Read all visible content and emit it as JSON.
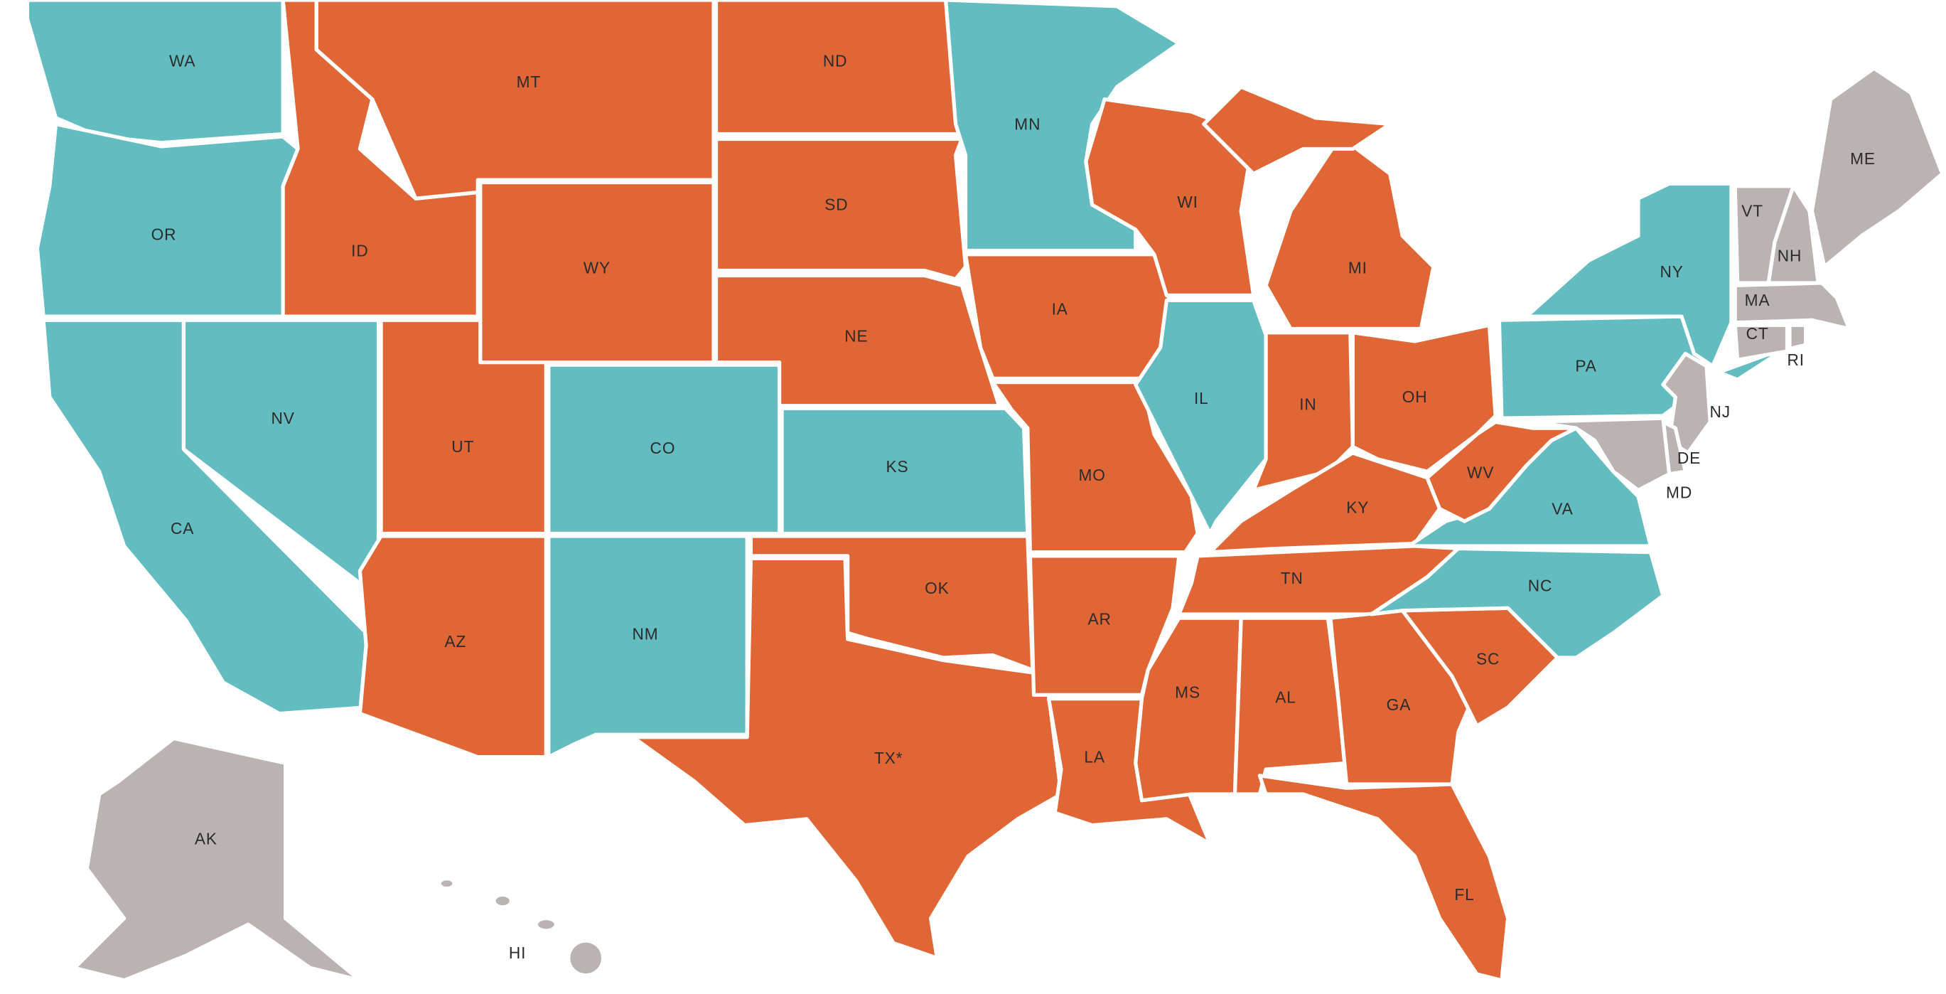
{
  "states": [
    {
      "label": "WA",
      "color": "#63bcc0"
    },
    {
      "label": "OR",
      "color": "#63bcc0"
    },
    {
      "label": "CA",
      "color": "#63bcc0"
    },
    {
      "label": "NV",
      "color": "#63bcc0"
    },
    {
      "label": "ID",
      "color": "#e06636"
    },
    {
      "label": "MT",
      "color": "#e06636"
    },
    {
      "label": "WY",
      "color": "#e06636"
    },
    {
      "label": "UT",
      "color": "#e06636"
    },
    {
      "label": "CO",
      "color": "#63bcc0"
    },
    {
      "label": "AZ",
      "color": "#e06636"
    },
    {
      "label": "NM",
      "color": "#63bcc0"
    },
    {
      "label": "ND",
      "color": "#e06636"
    },
    {
      "label": "SD",
      "color": "#e06636"
    },
    {
      "label": "NE",
      "color": "#e06636"
    },
    {
      "label": "KS",
      "color": "#63bcc0"
    },
    {
      "label": "OK",
      "color": "#e06636"
    },
    {
      "label": "TX*",
      "color": "#e06636"
    },
    {
      "label": "MN",
      "color": "#63bcc0"
    },
    {
      "label": "IA",
      "color": "#e06636"
    },
    {
      "label": "MO",
      "color": "#e06636"
    },
    {
      "label": "AR",
      "color": "#e06636"
    },
    {
      "label": "LA",
      "color": "#e06636"
    },
    {
      "label": "WI",
      "color": "#e06636"
    },
    {
      "label": "IL",
      "color": "#63bcc0"
    },
    {
      "label": "MI",
      "color": "#e06636"
    },
    {
      "label": "IN",
      "color": "#e06636"
    },
    {
      "label": "OH",
      "color": "#e06636"
    },
    {
      "label": "KY",
      "color": "#e06636"
    },
    {
      "label": "TN",
      "color": "#e06636"
    },
    {
      "label": "MS",
      "color": "#e06636"
    },
    {
      "label": "AL",
      "color": "#e06636"
    },
    {
      "label": "GA",
      "color": "#e06636"
    },
    {
      "label": "FL",
      "color": "#e06636"
    },
    {
      "label": "SC",
      "color": "#e06636"
    },
    {
      "label": "NC",
      "color": "#63bcc0"
    },
    {
      "label": "VA",
      "color": "#63bcc0"
    },
    {
      "label": "WV",
      "color": "#e06636"
    },
    {
      "label": "PA",
      "color": "#63bcc0"
    },
    {
      "label": "NY",
      "color": "#63bcc0"
    },
    {
      "label": "VT",
      "color": "#bab3b1"
    },
    {
      "label": "NH",
      "color": "#bab3b1"
    },
    {
      "label": "ME",
      "color": "#bab3b1"
    },
    {
      "label": "MA",
      "color": "#bab3b1"
    },
    {
      "label": "CT",
      "color": "#bab3b1"
    },
    {
      "label": "RI",
      "color": "#bab3b1"
    },
    {
      "label": "NJ",
      "color": "#bab3b1"
    },
    {
      "label": "DE",
      "color": "#bab3b1"
    },
    {
      "label": "MD",
      "color": "#bab3b1"
    },
    {
      "label": "AK",
      "color": "#bab3b1"
    },
    {
      "label": "HI",
      "color": "#bab3b1"
    }
  ]
}
